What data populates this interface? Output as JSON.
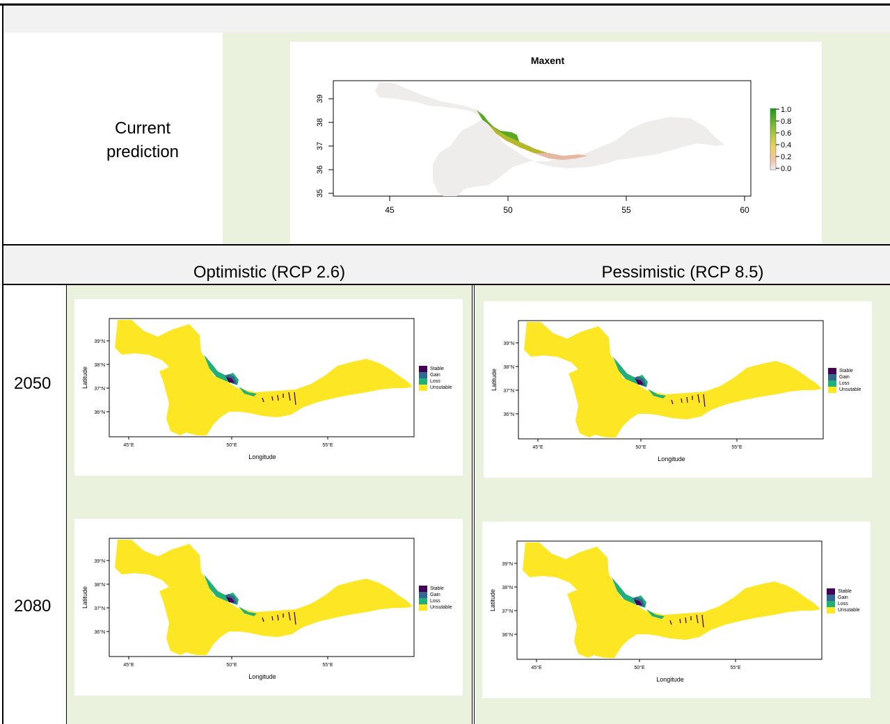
{
  "table": {
    "current_label": "Current prediction",
    "optimistic_header": "Optimistic (RCP 2.6)",
    "pessimistic_header": "Pessimistic (RCP 8.5)",
    "year_2050": "2050",
    "year_2080": "2080"
  },
  "colors": {
    "header_bg": "#f2f2f2",
    "cell_bg": "#eaf1dd",
    "region": "#fde725",
    "stable": "#440154",
    "gain": "#31688e",
    "loss": "#21b07a",
    "neutral_region": "#efecec"
  },
  "maxent_map": {
    "title": "Maxent",
    "x_ticks": [
      "45",
      "50",
      "55",
      "60"
    ],
    "y_ticks": [
      "35",
      "36",
      "37",
      "38",
      "39"
    ],
    "legend_values": [
      "1.0",
      "0.8",
      "0.6",
      "0.4",
      "0.2",
      "0.0"
    ]
  },
  "change_map": {
    "x_ticks": [
      "45°E",
      "50°E",
      "55°E"
    ],
    "y_ticks": [
      "36°N",
      "37°N",
      "38°N",
      "39°N"
    ],
    "xlabel": "Longitude",
    "ylabel": "Latitude",
    "legend": [
      "Stable",
      "Gain",
      "Loss",
      "Unsutable"
    ]
  }
}
